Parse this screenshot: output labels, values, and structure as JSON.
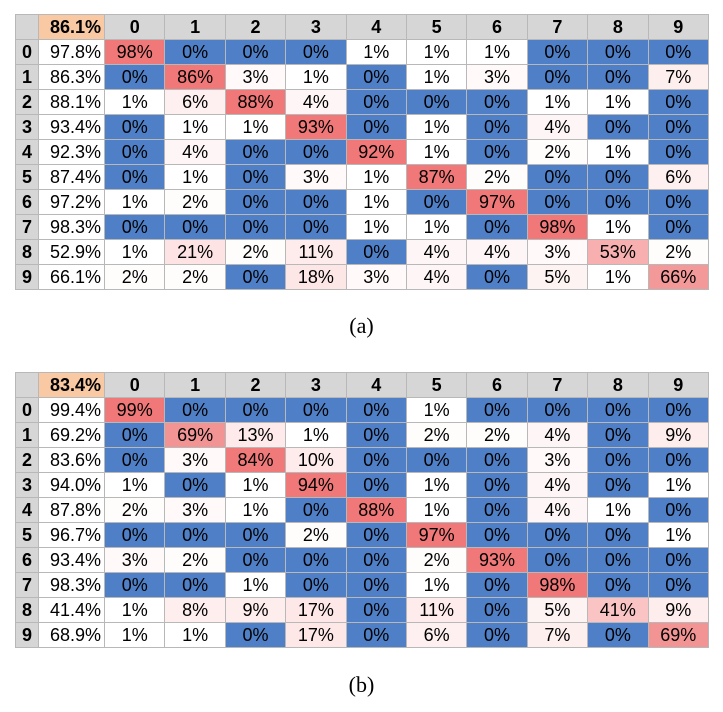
{
  "chart_data": [
    {
      "type": "heatmap",
      "caption": "(a)",
      "overall_accuracy": "86.1%",
      "columns": [
        "0",
        "1",
        "2",
        "3",
        "4",
        "5",
        "6",
        "7",
        "8",
        "9"
      ],
      "rows": [
        "0",
        "1",
        "2",
        "3",
        "4",
        "5",
        "6",
        "7",
        "8",
        "9"
      ],
      "row_accuracy": [
        "97.8%",
        "86.3%",
        "88.1%",
        "93.4%",
        "92.3%",
        "87.4%",
        "97.2%",
        "98.3%",
        "52.9%",
        "66.1%"
      ],
      "values": [
        [
          98,
          0,
          0,
          0,
          1,
          1,
          1,
          0,
          0,
          0
        ],
        [
          0,
          86,
          3,
          1,
          0,
          1,
          3,
          0,
          0,
          7
        ],
        [
          1,
          6,
          88,
          4,
          0,
          0,
          0,
          1,
          1,
          0
        ],
        [
          0,
          1,
          1,
          93,
          0,
          1,
          0,
          4,
          0,
          0
        ],
        [
          0,
          4,
          0,
          0,
          92,
          1,
          0,
          2,
          1,
          0
        ],
        [
          0,
          1,
          0,
          3,
          1,
          87,
          2,
          0,
          0,
          6
        ],
        [
          1,
          2,
          0,
          0,
          1,
          0,
          97,
          0,
          0,
          0
        ],
        [
          0,
          0,
          0,
          0,
          1,
          1,
          0,
          98,
          1,
          0
        ],
        [
          1,
          21,
          2,
          11,
          0,
          4,
          4,
          3,
          53,
          2
        ],
        [
          2,
          2,
          0,
          18,
          3,
          4,
          0,
          5,
          1,
          66
        ]
      ]
    },
    {
      "type": "heatmap",
      "caption": "(b)",
      "overall_accuracy": "83.4%",
      "columns": [
        "0",
        "1",
        "2",
        "3",
        "4",
        "5",
        "6",
        "7",
        "8",
        "9"
      ],
      "rows": [
        "0",
        "1",
        "2",
        "3",
        "4",
        "5",
        "6",
        "7",
        "8",
        "9"
      ],
      "row_accuracy": [
        "99.4%",
        "69.2%",
        "83.6%",
        "94.0%",
        "87.8%",
        "96.7%",
        "93.4%",
        "98.3%",
        "41.4%",
        "68.9%"
      ],
      "values": [
        [
          99,
          0,
          0,
          0,
          0,
          1,
          0,
          0,
          0,
          0
        ],
        [
          0,
          69,
          13,
          1,
          0,
          2,
          2,
          4,
          0,
          9
        ],
        [
          0,
          3,
          84,
          10,
          0,
          0,
          0,
          3,
          0,
          0
        ],
        [
          1,
          0,
          1,
          94,
          0,
          1,
          0,
          4,
          0,
          1
        ],
        [
          2,
          3,
          1,
          0,
          88,
          1,
          0,
          4,
          1,
          0
        ],
        [
          0,
          0,
          0,
          2,
          0,
          97,
          0,
          0,
          0,
          1
        ],
        [
          3,
          2,
          0,
          0,
          0,
          2,
          93,
          0,
          0,
          0
        ],
        [
          0,
          0,
          1,
          0,
          0,
          1,
          0,
          98,
          0,
          0
        ],
        [
          1,
          8,
          9,
          17,
          0,
          11,
          0,
          5,
          41,
          9
        ],
        [
          1,
          1,
          0,
          17,
          0,
          6,
          0,
          7,
          0,
          69
        ]
      ]
    }
  ],
  "colors": {
    "zero": "#4f7fc6",
    "low": "#ffffff",
    "mid": "#fde0e0",
    "high": "#f07878",
    "header": "#d6d6d6",
    "overall": "#f8c9a3"
  }
}
